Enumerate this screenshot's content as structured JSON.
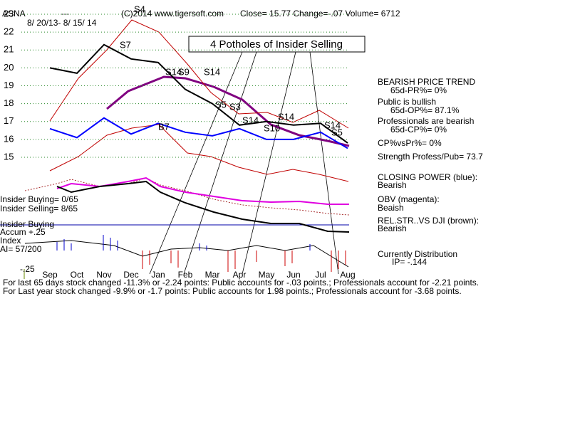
{
  "chart_data": {
    "type": "line",
    "symbol": "ASNA",
    "dash": "---",
    "source": "(C)2014 www.tigersoft.com",
    "quote": "Close=  15.77  Change=-.07 Volume= 6712",
    "date_range": "8/ 20/13- 8/ 15/ 14",
    "title": "4 Potholes of Insider Selling",
    "categories": [
      "Sep",
      "Oct",
      "Nov",
      "Dec",
      "Jan",
      "Feb",
      "Mar",
      "Apr",
      "May",
      "Jun",
      "Jul",
      "Aug"
    ],
    "series": [
      {
        "name": "Price",
        "color": "#000000",
        "values": [
          20.0,
          19.7,
          21.3,
          20.5,
          20.3,
          18.8,
          18.0,
          16.8,
          17.0,
          16.8,
          16.9,
          15.8
        ]
      },
      {
        "name": "CLOSING POWER (blue):",
        "color": "#0000ff",
        "values": [
          16.6,
          16.1,
          17.2,
          16.3,
          16.9,
          16.4,
          16.2,
          16.6,
          16.0,
          16.0,
          16.4,
          15.5
        ]
      }
    ],
    "ylim": [
      15,
      23
    ],
    "yticks": [
      15,
      16,
      17,
      18,
      19,
      20,
      21,
      22,
      23
    ],
    "grid": true,
    "annotations": [
      "S7",
      "S4",
      "S14",
      "S9",
      "S14",
      "B7",
      "S5",
      "S3",
      "S14",
      "S14",
      "S10",
      "S14",
      "S5"
    ],
    "panel": [
      "BEARISH PRICE TREND",
      "65d-PR%= 0%",
      "Public is bullish",
      "65d-OP%= 87.1%",
      "Professionals are bearish",
      "65d-CP%= 0%",
      "CP%vsPr%=  0%",
      "Strength Profess/Pub= 73.7",
      "Bearish",
      "OBV (magenta):",
      "Beaish",
      "REL.STR..VS DJI (brown):",
      "Bearish",
      "Currently Distribution",
      "IP= -.144"
    ],
    "left_labels": [
      "Insider Buying= 0/65",
      "Insider Selling= 8/65",
      "Insider Buying",
      "Accum  +.25",
      "Index",
      "AI= 57/200",
      "-.25"
    ],
    "footer": [
      "For last 65 days stock changed -11.3% or -2.24 points:  Public accounts for -.03 points.;  Professionals account for -2.21 points.",
      "For Last year stock changed -9.9% or -1.7 points:  Public accounts for  1.98 points.;  Professionals account for -3.68 points."
    ]
  }
}
